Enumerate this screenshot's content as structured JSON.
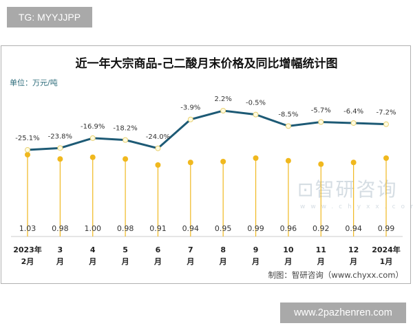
{
  "overlay_top": "TG: MYYJJPP",
  "overlay_bottom": "www.2pazhenren.com",
  "watermark": "智研咨询 www.chyxx.com",
  "chart_data": {
    "type": "line+lollipop",
    "title": "近一年大宗商品-己二酸月末价格及同比增幅统计图",
    "unit_label": "单位：万元/吨",
    "credit": "制图：智研咨询（www.chyxx.com）",
    "categories": [
      [
        "2023年",
        "2月"
      ],
      [
        "3",
        "月"
      ],
      [
        "4",
        "月"
      ],
      [
        "5",
        "月"
      ],
      [
        "6",
        "月"
      ],
      [
        "7",
        "月"
      ],
      [
        "8",
        "月"
      ],
      [
        "9",
        "月"
      ],
      [
        "10",
        "月"
      ],
      [
        "11",
        "月"
      ],
      [
        "12",
        "月"
      ],
      [
        "2024年",
        "1月"
      ]
    ],
    "series": [
      {
        "kind": "lollipop",
        "values": [
          1.03,
          0.98,
          1.0,
          0.98,
          0.91,
          0.94,
          0.95,
          0.99,
          0.96,
          0.92,
          0.94,
          0.99
        ],
        "labels": [
          "1.03",
          "0.98",
          "1.00",
          "0.98",
          "0.91",
          "0.94",
          "0.95",
          "0.99",
          "0.96",
          "0.92",
          "0.94",
          "0.99"
        ],
        "color": "#f0b81e"
      },
      {
        "kind": "line",
        "values": [
          -25.1,
          -23.8,
          -16.9,
          -18.2,
          -24.0,
          -3.9,
          2.2,
          -0.5,
          -8.5,
          -5.7,
          -6.4,
          -7.2
        ],
        "labels": [
          "-25.1%",
          "-23.8%",
          "-16.9%",
          "-18.2%",
          "-24.0%",
          "-3.9%",
          "2.2%",
          "-0.5%",
          "-8.5%",
          "-5.7%",
          "-6.4%",
          "-7.2%"
        ],
        "color": "#1d5a75"
      }
    ],
    "grid": false
  }
}
